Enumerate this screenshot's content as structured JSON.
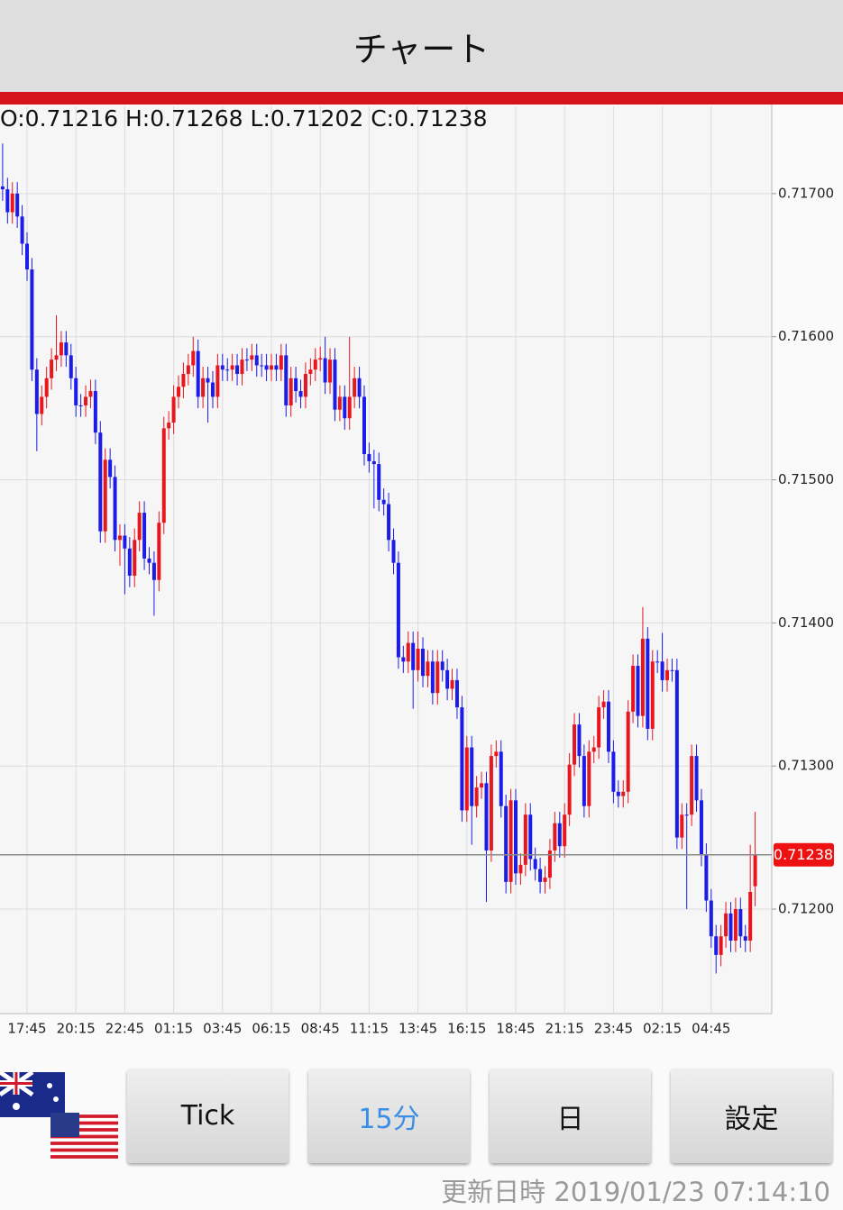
{
  "header": {
    "title": "チャート"
  },
  "chart_data": {
    "type": "candlestick",
    "info": "O:0.71216 H:0.71268 L:0.71202 C:0.71238",
    "up_color": "#e8161e",
    "down_color": "#1c1ce8",
    "ylim": [
      0.71127,
      0.71761
    ],
    "yticks": [
      {
        "value": 0.717,
        "label": "0.71700"
      },
      {
        "value": 0.716,
        "label": "0.71600"
      },
      {
        "value": 0.715,
        "label": "0.71500"
      },
      {
        "value": 0.714,
        "label": "0.71400"
      },
      {
        "value": 0.713,
        "label": "0.71300"
      },
      {
        "value": 0.712,
        "label": "0.71200"
      }
    ],
    "xticks": [
      "17:45",
      "20:15",
      "22:45",
      "01:15",
      "03:45",
      "06:15",
      "08:45",
      "11:15",
      "13:45",
      "16:15",
      "18:45",
      "21:15",
      "23:45",
      "02:15",
      "04:45"
    ],
    "last_price": {
      "value": 0.71238,
      "label": "0.71238"
    },
    "grid": true,
    "ohlc": [
      [
        0.71705,
        0.71735,
        0.71695,
        0.71703
      ],
      [
        0.71703,
        0.71711,
        0.71679,
        0.71687
      ],
      [
        0.71687,
        0.71708,
        0.71679,
        0.717
      ],
      [
        0.717,
        0.71708,
        0.71676,
        0.71684
      ],
      [
        0.71684,
        0.71692,
        0.71657,
        0.71665
      ],
      [
        0.71665,
        0.71673,
        0.71639,
        0.71647
      ],
      [
        0.71647,
        0.71655,
        0.71569,
        0.71577
      ],
      [
        0.71577,
        0.71585,
        0.7152,
        0.71546
      ],
      [
        0.71546,
        0.71566,
        0.71538,
        0.71558
      ],
      [
        0.71558,
        0.71579,
        0.7155,
        0.71571
      ],
      [
        0.71571,
        0.71592,
        0.71563,
        0.71584
      ],
      [
        0.71584,
        0.71615,
        0.71576,
        0.71587
      ],
      [
        0.71587,
        0.71604,
        0.71579,
        0.71596
      ],
      [
        0.71596,
        0.71604,
        0.71579,
        0.71587
      ],
      [
        0.71587,
        0.71595,
        0.71563,
        0.71571
      ],
      [
        0.71571,
        0.71579,
        0.71544,
        0.71552
      ],
      [
        0.71552,
        0.7156,
        0.71544,
        0.71552
      ],
      [
        0.71552,
        0.71566,
        0.71544,
        0.71558
      ],
      [
        0.71558,
        0.7157,
        0.7155,
        0.71562
      ],
      [
        0.71562,
        0.7157,
        0.71525,
        0.71533
      ],
      [
        0.71533,
        0.71541,
        0.71456,
        0.71464
      ],
      [
        0.71464,
        0.71522,
        0.71456,
        0.71514
      ],
      [
        0.71514,
        0.71522,
        0.71494,
        0.71502
      ],
      [
        0.71502,
        0.7151,
        0.7145,
        0.71458
      ],
      [
        0.71458,
        0.71469,
        0.7144,
        0.71461
      ],
      [
        0.71461,
        0.71469,
        0.7142,
        0.71452
      ],
      [
        0.71452,
        0.7146,
        0.71425,
        0.71433
      ],
      [
        0.71433,
        0.71466,
        0.71425,
        0.71458
      ],
      [
        0.71458,
        0.71485,
        0.7145,
        0.71477
      ],
      [
        0.71477,
        0.71485,
        0.71437,
        0.71445
      ],
      [
        0.71445,
        0.71453,
        0.71434,
        0.71442
      ],
      [
        0.71442,
        0.7145,
        0.71405,
        0.7143
      ],
      [
        0.7143,
        0.71478,
        0.71422,
        0.7147
      ],
      [
        0.7147,
        0.71544,
        0.71462,
        0.71536
      ],
      [
        0.71536,
        0.71548,
        0.71528,
        0.7154
      ],
      [
        0.7154,
        0.71566,
        0.71532,
        0.71558
      ],
      [
        0.71558,
        0.71573,
        0.7155,
        0.71565
      ],
      [
        0.71565,
        0.71582,
        0.71557,
        0.71574
      ],
      [
        0.71574,
        0.71588,
        0.71566,
        0.7158
      ],
      [
        0.7158,
        0.716,
        0.71572,
        0.7159
      ],
      [
        0.7159,
        0.71598,
        0.7155,
        0.71558
      ],
      [
        0.71558,
        0.71579,
        0.7155,
        0.71571
      ],
      [
        0.71571,
        0.71579,
        0.7154,
        0.71568
      ],
      [
        0.71568,
        0.71576,
        0.7155,
        0.71558
      ],
      [
        0.71558,
        0.71588,
        0.7155,
        0.7158
      ],
      [
        0.7158,
        0.71588,
        0.71569,
        0.71577
      ],
      [
        0.71577,
        0.71585,
        0.71569,
        0.71577
      ],
      [
        0.71577,
        0.71588,
        0.71569,
        0.7158
      ],
      [
        0.7158,
        0.71588,
        0.71566,
        0.71574
      ],
      [
        0.71574,
        0.71592,
        0.71566,
        0.71584
      ],
      [
        0.71584,
        0.71592,
        0.71576,
        0.71584
      ],
      [
        0.71584,
        0.71595,
        0.71576,
        0.71587
      ],
      [
        0.71587,
        0.71595,
        0.71572,
        0.7158
      ],
      [
        0.7158,
        0.71588,
        0.71572,
        0.7158
      ],
      [
        0.7158,
        0.71588,
        0.71569,
        0.71577
      ],
      [
        0.71577,
        0.71588,
        0.71569,
        0.7158
      ],
      [
        0.7158,
        0.71588,
        0.71569,
        0.71577
      ],
      [
        0.71577,
        0.71595,
        0.71569,
        0.71587
      ],
      [
        0.71587,
        0.71595,
        0.71544,
        0.71552
      ],
      [
        0.71552,
        0.71579,
        0.71544,
        0.71571
      ],
      [
        0.71571,
        0.71579,
        0.71554,
        0.71562
      ],
      [
        0.71562,
        0.7157,
        0.7155,
        0.71558
      ],
      [
        0.71558,
        0.71582,
        0.7155,
        0.71574
      ],
      [
        0.71574,
        0.71585,
        0.71566,
        0.71577
      ],
      [
        0.71577,
        0.71592,
        0.71569,
        0.71584
      ],
      [
        0.71584,
        0.71593,
        0.71576,
        0.71585
      ],
      [
        0.71585,
        0.716,
        0.7156,
        0.71568
      ],
      [
        0.71568,
        0.71592,
        0.7156,
        0.71584
      ],
      [
        0.71584,
        0.71592,
        0.71541,
        0.71549
      ],
      [
        0.71549,
        0.71566,
        0.71541,
        0.71558
      ],
      [
        0.71558,
        0.71566,
        0.71535,
        0.71543
      ],
      [
        0.71543,
        0.716,
        0.71535,
        0.71558
      ],
      [
        0.71558,
        0.71579,
        0.7155,
        0.71571
      ],
      [
        0.71571,
        0.71579,
        0.7155,
        0.71558
      ],
      [
        0.71558,
        0.71566,
        0.7151,
        0.71518
      ],
      [
        0.71518,
        0.71526,
        0.71505,
        0.71513
      ],
      [
        0.71513,
        0.71521,
        0.7148,
        0.71511
      ],
      [
        0.71511,
        0.71519,
        0.71478,
        0.71486
      ],
      [
        0.71486,
        0.71494,
        0.71475,
        0.71483
      ],
      [
        0.71483,
        0.71491,
        0.7145,
        0.71458
      ],
      [
        0.71458,
        0.71466,
        0.71434,
        0.71442
      ],
      [
        0.71442,
        0.7145,
        0.71368,
        0.71376
      ],
      [
        0.71376,
        0.71384,
        0.71365,
        0.71373
      ],
      [
        0.71373,
        0.71394,
        0.71365,
        0.71386
      ],
      [
        0.71386,
        0.71394,
        0.7134,
        0.71367
      ],
      [
        0.71367,
        0.71394,
        0.71359,
        0.71382
      ],
      [
        0.71382,
        0.7139,
        0.71355,
        0.71363
      ],
      [
        0.71363,
        0.71381,
        0.71355,
        0.71373
      ],
      [
        0.71373,
        0.71381,
        0.71343,
        0.71351
      ],
      [
        0.71351,
        0.71381,
        0.71343,
        0.71373
      ],
      [
        0.71373,
        0.71381,
        0.71359,
        0.71367
      ],
      [
        0.71367,
        0.71375,
        0.71346,
        0.71354
      ],
      [
        0.71354,
        0.71368,
        0.71346,
        0.7136
      ],
      [
        0.7136,
        0.71368,
        0.71333,
        0.71341
      ],
      [
        0.71341,
        0.71349,
        0.71261,
        0.71269
      ],
      [
        0.71269,
        0.71321,
        0.71261,
        0.71313
      ],
      [
        0.71313,
        0.71321,
        0.71245,
        0.71272
      ],
      [
        0.71272,
        0.71293,
        0.71264,
        0.71285
      ],
      [
        0.71285,
        0.71296,
        0.71277,
        0.71288
      ],
      [
        0.71288,
        0.71296,
        0.71205,
        0.71241
      ],
      [
        0.71241,
        0.71315,
        0.71233,
        0.71307
      ],
      [
        0.71307,
        0.71318,
        0.71299,
        0.7131
      ],
      [
        0.7131,
        0.71318,
        0.71264,
        0.71272
      ],
      [
        0.71272,
        0.7128,
        0.71211,
        0.71219
      ],
      [
        0.71219,
        0.71284,
        0.71211,
        0.71276
      ],
      [
        0.71276,
        0.71284,
        0.71217,
        0.71225
      ],
      [
        0.71225,
        0.71239,
        0.71217,
        0.71231
      ],
      [
        0.71231,
        0.71274,
        0.71223,
        0.71266
      ],
      [
        0.71266,
        0.71274,
        0.71227,
        0.71235
      ],
      [
        0.71235,
        0.71243,
        0.7122,
        0.71228
      ],
      [
        0.71228,
        0.71236,
        0.71211,
        0.71219
      ],
      [
        0.71219,
        0.7123,
        0.71211,
        0.71222
      ],
      [
        0.71222,
        0.71249,
        0.71214,
        0.71241
      ],
      [
        0.71241,
        0.71268,
        0.71233,
        0.7126
      ],
      [
        0.7126,
        0.71268,
        0.71236,
        0.71244
      ],
      [
        0.71244,
        0.71274,
        0.71236,
        0.71266
      ],
      [
        0.71266,
        0.71309,
        0.71258,
        0.71301
      ],
      [
        0.71301,
        0.71337,
        0.71293,
        0.71329
      ],
      [
        0.71329,
        0.71337,
        0.71299,
        0.71307
      ],
      [
        0.71307,
        0.71315,
        0.71264,
        0.71272
      ],
      [
        0.71272,
        0.71318,
        0.71264,
        0.7131
      ],
      [
        0.7131,
        0.71321,
        0.71302,
        0.71313
      ],
      [
        0.71313,
        0.71349,
        0.71305,
        0.71341
      ],
      [
        0.71341,
        0.71353,
        0.71333,
        0.71345
      ],
      [
        0.71345,
        0.71353,
        0.71302,
        0.7131
      ],
      [
        0.7131,
        0.71318,
        0.71274,
        0.71282
      ],
      [
        0.71282,
        0.7129,
        0.71271,
        0.71279
      ],
      [
        0.71279,
        0.7129,
        0.71271,
        0.71282
      ],
      [
        0.71282,
        0.71346,
        0.71274,
        0.71338
      ],
      [
        0.71338,
        0.71378,
        0.7133,
        0.7137
      ],
      [
        0.7137,
        0.71378,
        0.71327,
        0.71335
      ],
      [
        0.71335,
        0.71411,
        0.71327,
        0.71389
      ],
      [
        0.71389,
        0.71397,
        0.71318,
        0.71326
      ],
      [
        0.71326,
        0.71381,
        0.71318,
        0.71373
      ],
      [
        0.71373,
        0.71381,
        0.71365,
        0.71373
      ],
      [
        0.71373,
        0.71393,
        0.71352,
        0.7136
      ],
      [
        0.7136,
        0.71375,
        0.71352,
        0.71367
      ],
      [
        0.71367,
        0.71375,
        0.71359,
        0.71367
      ],
      [
        0.71367,
        0.71375,
        0.71242,
        0.7125
      ],
      [
        0.7125,
        0.71274,
        0.71242,
        0.71266
      ],
      [
        0.71266,
        0.71274,
        0.712,
        0.71266
      ],
      [
        0.71266,
        0.71315,
        0.71258,
        0.71307
      ],
      [
        0.71307,
        0.71315,
        0.71268,
        0.71276
      ],
      [
        0.71276,
        0.71284,
        0.7123,
        0.71238
      ],
      [
        0.71238,
        0.71246,
        0.71198,
        0.71206
      ],
      [
        0.71206,
        0.71214,
        0.71173,
        0.71181
      ],
      [
        0.71181,
        0.71189,
        0.71155,
        0.71168
      ],
      [
        0.71168,
        0.71189,
        0.7116,
        0.71181
      ],
      [
        0.71181,
        0.71205,
        0.71173,
        0.71197
      ],
      [
        0.71197,
        0.71205,
        0.7117,
        0.71178
      ],
      [
        0.71178,
        0.71208,
        0.7117,
        0.712
      ],
      [
        0.712,
        0.71208,
        0.71173,
        0.71181
      ],
      [
        0.71181,
        0.71189,
        0.7117,
        0.71178
      ],
      [
        0.71178,
        0.71245,
        0.7117,
        0.71212
      ],
      [
        0.71216,
        0.71268,
        0.71202,
        0.71238
      ]
    ]
  },
  "buttons": [
    {
      "label": "Tick"
    },
    {
      "label": "15分"
    },
    {
      "label": "日"
    },
    {
      "label": "設定"
    }
  ],
  "footer": {
    "label": "更新日時",
    "datetime": "2019/01/23 07:14:10"
  }
}
